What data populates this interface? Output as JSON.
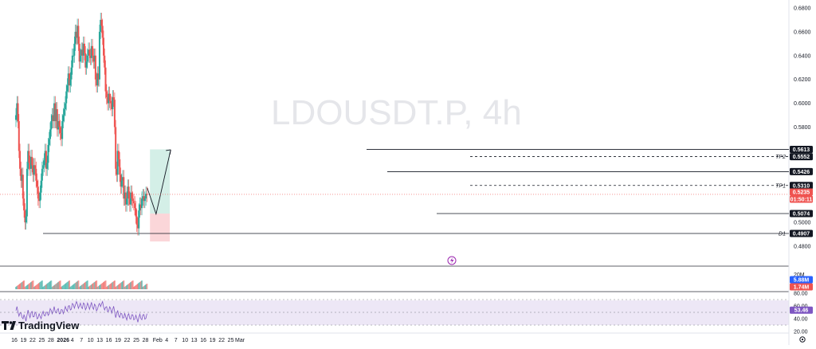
{
  "chart_data": {
    "type": "candlestick",
    "symbol_watermark": "LDOUSDT.P, 4h",
    "price_axis": {
      "min": 0.47,
      "max": 0.69,
      "ticks": [
        "0.6800",
        "0.6600",
        "0.6400",
        "0.6200",
        "0.6000",
        "0.5800",
        "0.5000",
        "0.4800"
      ],
      "tick_values": [
        0.68,
        0.66,
        0.64,
        0.62,
        0.6,
        0.58,
        0.5,
        0.48
      ]
    },
    "date_axis": {
      "labels": [
        "16",
        "19",
        "22",
        "25",
        "28",
        "2026",
        "4",
        "7",
        "10",
        "13",
        "16",
        "19",
        "22",
        "25",
        "28",
        "Feb",
        "4",
        "7",
        "10",
        "13",
        "16",
        "19",
        "22",
        "25",
        "Mar"
      ],
      "day_index": [
        0,
        3,
        6,
        9,
        12,
        16,
        19,
        22,
        25,
        28,
        31,
        34,
        37,
        40,
        43,
        47,
        50,
        53,
        56,
        59,
        62,
        65,
        68,
        71,
        74
      ]
    },
    "levels": [
      {
        "label": "",
        "value": 0.5613,
        "text": "0.5613",
        "badge": "dark"
      },
      {
        "label": "TP2",
        "value": 0.5552,
        "text": "0.5552",
        "badge": "dark",
        "dashed": true
      },
      {
        "label": "",
        "value": 0.5426,
        "text": "0.5426",
        "badge": "dark"
      },
      {
        "label": "TP1",
        "value": 0.531,
        "text": "0.5310",
        "badge": "dark",
        "dashed": true
      },
      {
        "label": "",
        "value": 0.5074,
        "text": "0.5074",
        "badge": "dark"
      },
      {
        "label": "D1",
        "value": 0.4907,
        "text": "0.4907",
        "badge": "dark"
      }
    ],
    "current_price": {
      "value": 0.5235,
      "text": "0.5235",
      "countdown": "01:50:11"
    },
    "position": {
      "entry": 0.5074,
      "target": 0.5613,
      "stop": 0.484,
      "start_day": 44.5,
      "end_day": 51.0
    },
    "volume": {
      "labels": [
        "20M",
        "5.88M",
        "1.74M"
      ]
    },
    "rsi": {
      "value": "53.46",
      "ticks": [
        "80.00",
        "60.00",
        "40.00",
        "20.00"
      ],
      "tick_values": [
        80,
        60,
        40,
        20
      ]
    },
    "candles_close": [
      0.59,
      0.6,
      0.585,
      0.56,
      0.545,
      0.535,
      0.54,
      0.52,
      0.51,
      0.5,
      0.505,
      0.545,
      0.56,
      0.55,
      0.545,
      0.555,
      0.548,
      0.54,
      0.548,
      0.545,
      0.535,
      0.53,
      0.52,
      0.518,
      0.525,
      0.535,
      0.545,
      0.548,
      0.552,
      0.56,
      0.545,
      0.55,
      0.565,
      0.57,
      0.578,
      0.585,
      0.59,
      0.585,
      0.6,
      0.585,
      0.595,
      0.578,
      0.585,
      0.58,
      0.575,
      0.57,
      0.585,
      0.59,
      0.595,
      0.6,
      0.61,
      0.615,
      0.625,
      0.615,
      0.62,
      0.63,
      0.64,
      0.64,
      0.65,
      0.66,
      0.655,
      0.665,
      0.65,
      0.635,
      0.64,
      0.645,
      0.64,
      0.65,
      0.642,
      0.63,
      0.635,
      0.64,
      0.645,
      0.64,
      0.638,
      0.648,
      0.64,
      0.635,
      0.64,
      0.62,
      0.615,
      0.625,
      0.62,
      0.66,
      0.67,
      0.665,
      0.655,
      0.64,
      0.63,
      0.61,
      0.605,
      0.6,
      0.608,
      0.602,
      0.6,
      0.595,
      0.605,
      0.603,
      0.58,
      0.545,
      0.54,
      0.56,
      0.553,
      0.54,
      0.53,
      0.535,
      0.538,
      0.52,
      0.525,
      0.515,
      0.52,
      0.53,
      0.52,
      0.515,
      0.525,
      0.52,
      0.518,
      0.516,
      0.512,
      0.505,
      0.498,
      0.495,
      0.51,
      0.515,
      0.512,
      0.52,
      0.522,
      0.518,
      0.52,
      0.524,
      0.523
    ]
  },
  "branding": {
    "name": "TradingView"
  },
  "colors": {
    "up": "#26a69a",
    "down": "#ef5350",
    "rsi": "#7e57c2",
    "target_zone": "#d4efe7",
    "stop_zone": "#fbd6d9"
  }
}
